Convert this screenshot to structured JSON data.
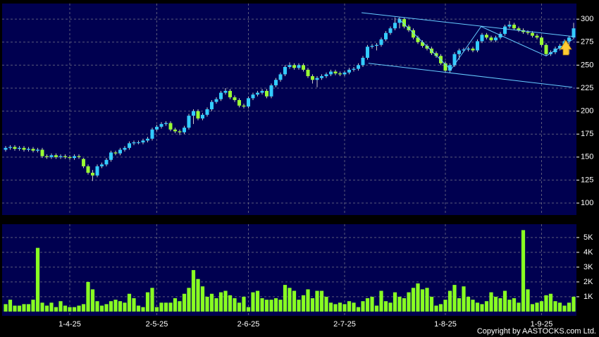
{
  "chart_data": {
    "type": "candlestick",
    "credit": "Copyright by AASTOCKS.com Ltd.",
    "up_color": "#33ccff",
    "down_color": "#99ff33",
    "categories": [
      null,
      null,
      null,
      null,
      null,
      null,
      null,
      null,
      null,
      null,
      null,
      null,
      null,
      null,
      "1-4-25",
      null,
      null,
      null,
      null,
      null,
      null,
      null,
      null,
      null,
      null,
      null,
      null,
      null,
      null,
      null,
      null,
      null,
      null,
      "2-5-25",
      null,
      null,
      null,
      null,
      null,
      null,
      null,
      null,
      null,
      null,
      null,
      null,
      null,
      null,
      null,
      null,
      null,
      null,
      null,
      "2-6-25",
      null,
      null,
      null,
      null,
      null,
      null,
      null,
      null,
      null,
      null,
      null,
      null,
      null,
      null,
      null,
      null,
      null,
      null,
      null,
      null,
      "2-7-25",
      null,
      null,
      null,
      null,
      null,
      null,
      null,
      null,
      null,
      null,
      null,
      null,
      null,
      null,
      null,
      null,
      null,
      null,
      null,
      null,
      null,
      "1-8-25",
      null,
      null,
      null,
      null,
      null,
      null,
      null,
      null,
      null,
      null,
      null,
      null,
      null,
      null,
      null,
      null,
      null,
      null,
      null,
      null,
      "1-9-25",
      null,
      null,
      null,
      null,
      null,
      null,
      null
    ],
    "open": [
      158,
      160,
      161,
      159,
      160,
      158,
      159,
      157,
      158,
      151,
      150,
      152,
      150,
      151,
      150,
      149,
      151,
      148,
      140,
      133,
      130,
      140,
      142,
      147,
      155,
      154,
      158,
      160,
      165,
      166,
      166,
      168,
      170,
      180,
      183,
      186,
      187,
      180,
      178,
      177,
      182,
      195,
      200,
      192,
      196,
      202,
      210,
      213,
      220,
      222,
      215,
      212,
      206,
      205,
      214,
      218,
      220,
      222,
      216,
      228,
      234,
      240,
      248,
      250,
      247,
      250,
      245,
      238,
      234,
      236,
      238,
      240,
      243,
      241,
      240,
      242,
      245,
      246,
      250,
      258,
      270,
      271,
      272,
      278,
      285,
      290,
      296,
      300,
      292,
      288,
      280,
      275,
      271,
      268,
      263,
      260,
      252,
      244,
      250,
      262,
      266,
      267,
      268,
      266,
      276,
      283,
      280,
      277,
      280,
      284,
      292,
      294,
      290,
      288,
      286,
      285,
      282,
      280,
      272,
      262,
      264,
      268,
      271,
      276,
      280
    ],
    "high": [
      162,
      163,
      163,
      162,
      162,
      161,
      161,
      160,
      160,
      153,
      154,
      154,
      153,
      153,
      152,
      153,
      153,
      149,
      142,
      136,
      142,
      144,
      149,
      157,
      157,
      160,
      162,
      167,
      168,
      168,
      170,
      172,
      182,
      185,
      188,
      189,
      189,
      182,
      180,
      184,
      197,
      202,
      202,
      198,
      204,
      212,
      215,
      222,
      225,
      224,
      217,
      214,
      208,
      216,
      220,
      222,
      224,
      224,
      230,
      236,
      242,
      250,
      253,
      252,
      252,
      252,
      247,
      240,
      238,
      240,
      242,
      245,
      245,
      243,
      244,
      247,
      248,
      252,
      260,
      272,
      273,
      274,
      280,
      287,
      292,
      302,
      302,
      302,
      294,
      290,
      282,
      277,
      273,
      270,
      265,
      262,
      254,
      252,
      264,
      268,
      269,
      270,
      270,
      278,
      285,
      285,
      282,
      282,
      286,
      294,
      298,
      296,
      292,
      290,
      288,
      287,
      284,
      282,
      274,
      266,
      270,
      273,
      278,
      282,
      296
    ],
    "low": [
      156,
      158,
      157,
      157,
      156,
      156,
      155,
      155,
      149,
      148,
      148,
      148,
      148,
      148,
      147,
      147,
      148,
      138,
      131,
      124,
      128,
      138,
      140,
      145,
      152,
      152,
      156,
      158,
      163,
      164,
      164,
      166,
      168,
      178,
      181,
      184,
      178,
      176,
      174,
      175,
      180,
      186,
      190,
      190,
      194,
      200,
      208,
      211,
      218,
      213,
      210,
      204,
      203,
      203,
      212,
      216,
      218,
      214,
      214,
      226,
      232,
      238,
      246,
      245,
      245,
      243,
      236,
      230,
      226,
      234,
      236,
      238,
      239,
      238,
      238,
      240,
      243,
      244,
      248,
      256,
      268,
      266,
      270,
      276,
      283,
      288,
      290,
      290,
      286,
      278,
      273,
      269,
      266,
      261,
      258,
      250,
      242,
      242,
      248,
      256,
      264,
      265,
      264,
      264,
      274,
      278,
      275,
      275,
      278,
      282,
      290,
      288,
      286,
      284,
      283,
      280,
      278,
      270,
      260,
      260,
      262,
      266,
      269,
      262,
      278
    ],
    "close": [
      160,
      161,
      159,
      160,
      158,
      159,
      157,
      158,
      151,
      150,
      152,
      150,
      151,
      150,
      149,
      151,
      150,
      140,
      133,
      130,
      140,
      142,
      147,
      155,
      154,
      158,
      160,
      165,
      166,
      166,
      168,
      170,
      180,
      183,
      186,
      187,
      180,
      178,
      177,
      182,
      195,
      200,
      192,
      196,
      202,
      210,
      213,
      220,
      222,
      215,
      212,
      206,
      205,
      214,
      218,
      220,
      222,
      216,
      228,
      234,
      240,
      248,
      250,
      247,
      250,
      245,
      238,
      234,
      236,
      238,
      240,
      243,
      241,
      240,
      242,
      245,
      246,
      250,
      258,
      270,
      271,
      272,
      278,
      285,
      290,
      296,
      300,
      292,
      288,
      280,
      275,
      271,
      268,
      263,
      260,
      252,
      244,
      250,
      262,
      266,
      267,
      268,
      266,
      276,
      283,
      280,
      277,
      280,
      284,
      292,
      294,
      290,
      288,
      286,
      285,
      282,
      280,
      272,
      262,
      264,
      268,
      271,
      276,
      280,
      290
    ],
    "ylim": [
      87,
      317
    ],
    "yticks": [
      100,
      125,
      150,
      175,
      200,
      225,
      250,
      275,
      300
    ],
    "grid": true,
    "trend_lines": [
      {
        "x": [
          77.7,
          124.2
        ],
        "y": [
          307,
          281
        ]
      },
      {
        "x": [
          79.2,
          123.7
        ],
        "y": [
          252,
          226
        ]
      },
      {
        "x": [
          85.7,
          97.2,
          103.8,
          118,
          123.8
        ],
        "y": [
          301,
          245,
          292,
          260,
          278
        ]
      }
    ],
    "trend_color": "#66ccff",
    "volume": {
      "color": "#88ff22",
      "values": [
        0.5,
        0.8,
        0.4,
        0.4,
        0.5,
        0.5,
        0.8,
        4.3,
        0.6,
        0.4,
        0.6,
        0.3,
        0.7,
        0.4,
        0.3,
        0.3,
        0.4,
        0.5,
        2.0,
        1.5,
        0.7,
        0.4,
        0.5,
        0.7,
        0.8,
        0.7,
        0.6,
        1.2,
        0.9,
        0.4,
        0.3,
        1.3,
        1.6,
        0.3,
        0.6,
        0.6,
        0.6,
        0.9,
        0.7,
        1.2,
        1.6,
        2.8,
        2.2,
        1.7,
        1.0,
        1.2,
        0.9,
        1.3,
        1.4,
        1.1,
        0.9,
        0.6,
        1.0,
        0.3,
        1.3,
        1.4,
        0.9,
        0.8,
        0.8,
        0.9,
        0.8,
        1.8,
        1.6,
        1.4,
        0.8,
        1.1,
        1.5,
        0.9,
        1.4,
        1.4,
        1.0,
        0.6,
        0.5,
        0.6,
        0.5,
        0.7,
        0.6,
        0.3,
        0.7,
        0.9,
        1.0,
        0.4,
        1.4,
        0.7,
        0.6,
        1.3,
        1.0,
        0.9,
        1.3,
        1.6,
        1.9,
        1.5,
        1.6,
        1.0,
        0.4,
        0.5,
        0.8,
        1.4,
        1.8,
        0.9,
        1.7,
        1.0,
        0.8,
        0.6,
        0.5,
        0.7,
        1.3,
        1.0,
        0.9,
        1.4,
        0.8,
        0.9,
        0.6,
        5.5,
        1.5,
        0.5,
        0.6,
        0.7,
        1.1,
        1.2,
        0.7,
        0.6,
        0.4,
        0.6,
        1.0
      ],
      "ylim": [
        -0.29,
        5.9
      ],
      "yticks": [
        {
          "value": 1,
          "label": "1K"
        },
        {
          "value": 2,
          "label": "2K"
        },
        {
          "value": 3,
          "label": "3K"
        },
        {
          "value": 4,
          "label": "4K"
        },
        {
          "value": 5,
          "label": "5K"
        }
      ]
    }
  }
}
